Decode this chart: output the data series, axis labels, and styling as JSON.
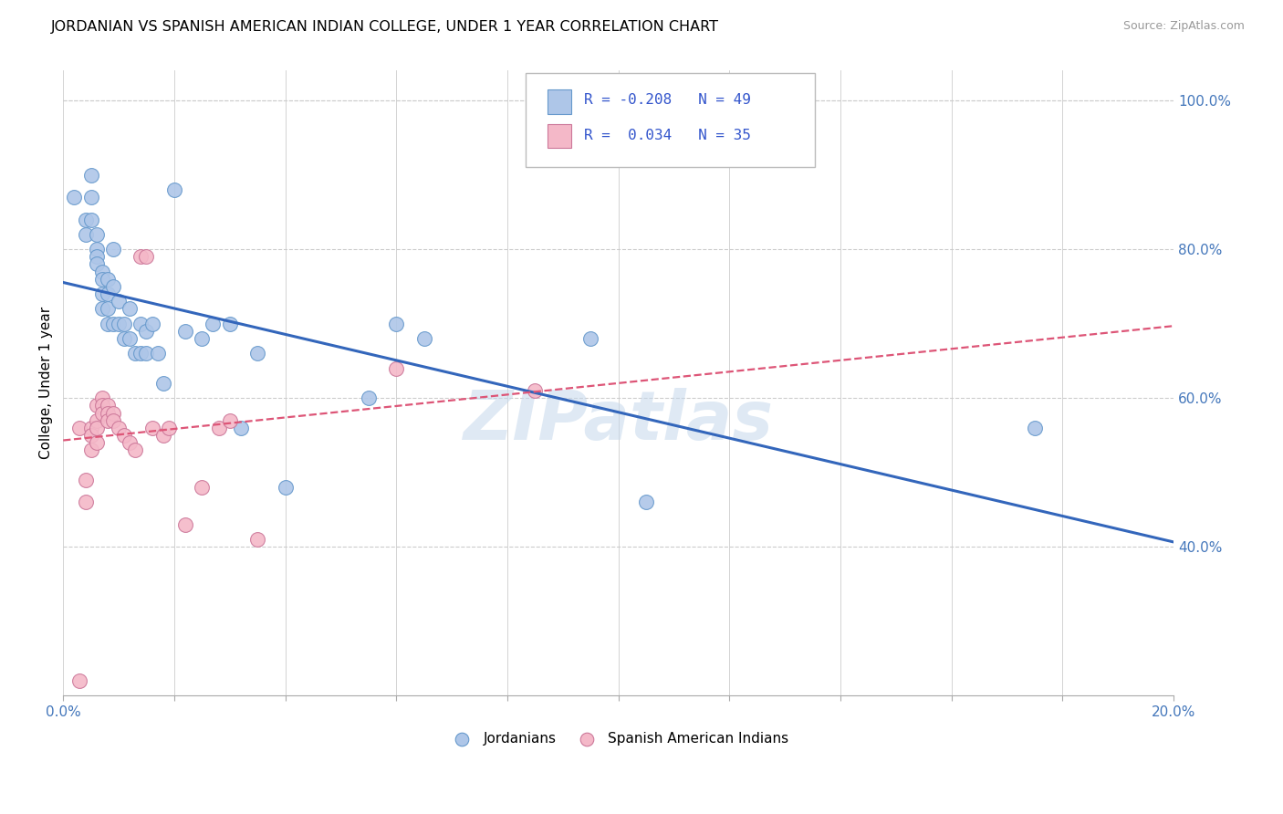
{
  "title": "JORDANIAN VS SPANISH AMERICAN INDIAN COLLEGE, UNDER 1 YEAR CORRELATION CHART",
  "source": "Source: ZipAtlas.com",
  "ylabel": "College, Under 1 year",
  "xlim": [
    0.0,
    0.2
  ],
  "ylim": [
    0.2,
    1.04
  ],
  "xticks": [
    0.0,
    0.02,
    0.04,
    0.06,
    0.08,
    0.1,
    0.12,
    0.14,
    0.16,
    0.18,
    0.2
  ],
  "yticks": [
    0.4,
    0.6,
    0.8,
    1.0
  ],
  "yticklabels": [
    "40.0%",
    "60.0%",
    "80.0%",
    "100.0%"
  ],
  "blue_R": -0.208,
  "blue_N": 49,
  "pink_R": 0.034,
  "pink_N": 35,
  "blue_color": "#aec6e8",
  "pink_color": "#f4b8c8",
  "blue_edge_color": "#6699cc",
  "pink_edge_color": "#cc7799",
  "blue_line_color": "#3366bb",
  "pink_line_color": "#dd5577",
  "grid_color": "#cccccc",
  "watermark": "ZIPatlas",
  "blue_points_x": [
    0.002,
    0.004,
    0.004,
    0.005,
    0.005,
    0.005,
    0.006,
    0.006,
    0.006,
    0.006,
    0.007,
    0.007,
    0.007,
    0.007,
    0.008,
    0.008,
    0.008,
    0.008,
    0.009,
    0.009,
    0.009,
    0.01,
    0.01,
    0.011,
    0.011,
    0.012,
    0.012,
    0.013,
    0.014,
    0.014,
    0.015,
    0.015,
    0.016,
    0.017,
    0.018,
    0.02,
    0.022,
    0.025,
    0.027,
    0.03,
    0.032,
    0.035,
    0.04,
    0.055,
    0.06,
    0.065,
    0.095,
    0.105,
    0.175
  ],
  "blue_points_y": [
    0.87,
    0.84,
    0.82,
    0.9,
    0.87,
    0.84,
    0.82,
    0.8,
    0.79,
    0.78,
    0.77,
    0.76,
    0.74,
    0.72,
    0.76,
    0.74,
    0.72,
    0.7,
    0.8,
    0.75,
    0.7,
    0.73,
    0.7,
    0.7,
    0.68,
    0.72,
    0.68,
    0.66,
    0.7,
    0.66,
    0.69,
    0.66,
    0.7,
    0.66,
    0.62,
    0.88,
    0.69,
    0.68,
    0.7,
    0.7,
    0.56,
    0.66,
    0.48,
    0.6,
    0.7,
    0.68,
    0.68,
    0.46,
    0.56
  ],
  "pink_points_x": [
    0.003,
    0.003,
    0.004,
    0.004,
    0.005,
    0.005,
    0.005,
    0.006,
    0.006,
    0.006,
    0.006,
    0.007,
    0.007,
    0.007,
    0.008,
    0.008,
    0.008,
    0.009,
    0.009,
    0.01,
    0.011,
    0.012,
    0.013,
    0.014,
    0.015,
    0.016,
    0.018,
    0.019,
    0.022,
    0.025,
    0.028,
    0.03,
    0.035,
    0.06,
    0.085
  ],
  "pink_points_y": [
    0.22,
    0.56,
    0.49,
    0.46,
    0.56,
    0.55,
    0.53,
    0.59,
    0.57,
    0.56,
    0.54,
    0.6,
    0.59,
    0.58,
    0.59,
    0.58,
    0.57,
    0.58,
    0.57,
    0.56,
    0.55,
    0.54,
    0.53,
    0.79,
    0.79,
    0.56,
    0.55,
    0.56,
    0.43,
    0.48,
    0.56,
    0.57,
    0.41,
    0.64,
    0.61
  ]
}
